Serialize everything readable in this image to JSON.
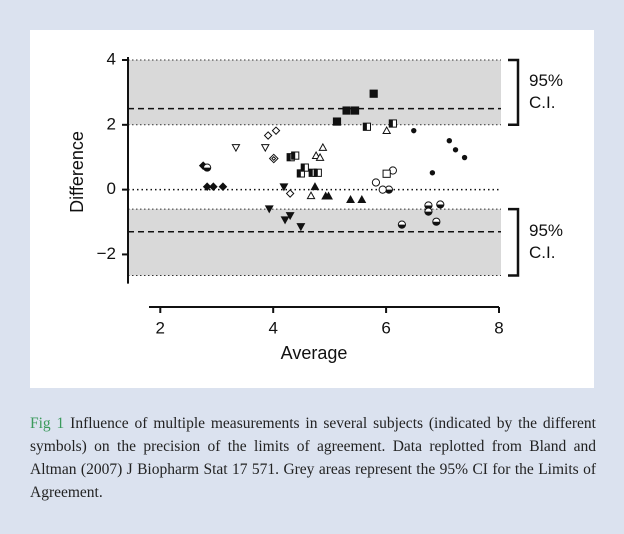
{
  "chart_data": {
    "type": "scatter",
    "x_label": "Average",
    "y_label": "Difference",
    "xlim": [
      1.8,
      8
    ],
    "xticks": [
      2,
      4,
      6,
      8
    ],
    "ylim": [
      -2.9,
      4
    ],
    "yticks": [
      4,
      2,
      0,
      {
        "value": -2,
        "label": "−2"
      }
    ],
    "reference_line": 0,
    "bands": [
      {
        "lower": 2,
        "upper": 4,
        "center": 2.5,
        "label": [
          "95%",
          "C.I."
        ]
      },
      {
        "lower": -2.65,
        "upper": -0.6,
        "center": -1.3,
        "label": [
          "95%",
          "C.I."
        ]
      }
    ],
    "band_color": "#d9d9d9",
    "series": [
      {
        "marker": "diamond-filled",
        "color": "#111111",
        "x": [
          2.76,
          2.83,
          2.94,
          3.11
        ],
        "values": [
          0.74,
          0.09,
          0.09,
          0.09
        ]
      },
      {
        "marker": "circle-half",
        "color": "#111111",
        "x": [
          2.83,
          6.28,
          6.75,
          6.75,
          6.96,
          6.89,
          6.05
        ],
        "values": [
          0.68,
          -1.08,
          -0.49,
          -0.68,
          -0.46,
          -0.99,
          0
        ]
      },
      {
        "marker": "triangle-down-open",
        "color": "#111111",
        "x": [
          3.34,
          3.86
        ],
        "values": [
          1.3,
          1.3
        ]
      },
      {
        "marker": "diamond-open",
        "color": "#111111",
        "x": [
          3.91,
          4.05,
          4.3
        ],
        "values": [
          1.67,
          1.82,
          -0.12
        ]
      },
      {
        "marker": "diamond-crossed",
        "color": "#111111",
        "x": [
          4.01
        ],
        "values": [
          0.96
        ]
      },
      {
        "marker": "triangle-down-filled",
        "color": "#111111",
        "x": [
          3.93,
          4.19,
          4.21,
          4.3,
          4.49
        ],
        "values": [
          -0.59,
          0.09,
          -0.93,
          -0.8,
          -1.14
        ]
      },
      {
        "marker": "square-half",
        "color": "#111111",
        "x": [
          4.31,
          4.39,
          4.49,
          4.56,
          4.7,
          4.79,
          5.66,
          6.12
        ],
        "values": [
          1.0,
          1.05,
          0.5,
          0.68,
          0.52,
          0.52,
          1.94,
          2.04
        ]
      },
      {
        "marker": "triangle-up-open",
        "color": "#111111",
        "x": [
          4.76,
          4.88,
          4.83,
          4.67,
          6.01
        ],
        "values": [
          1.05,
          1.3,
          0.99,
          -0.19,
          1.82
        ]
      },
      {
        "marker": "triangle-up-filled",
        "color": "#111111",
        "x": [
          4.74,
          4.93,
          4.98,
          5.37,
          5.57
        ],
        "values": [
          0.09,
          -0.2,
          -0.2,
          -0.31,
          -0.31
        ]
      },
      {
        "marker": "square-filled",
        "color": "#111111",
        "x": [
          5.13,
          5.3,
          5.45,
          5.78
        ],
        "values": [
          2.1,
          2.44,
          2.44,
          2.96
        ]
      },
      {
        "marker": "circle-open",
        "color": "#111111",
        "x": [
          5.82,
          5.94,
          6.12
        ],
        "values": [
          0.22,
          0,
          0.59
        ]
      },
      {
        "marker": "square-open",
        "color": "#111111",
        "x": [
          6.01
        ],
        "values": [
          0.49
        ]
      },
      {
        "marker": "dot",
        "color": "#111111",
        "x": [
          6.49,
          6.82,
          7.12,
          7.23,
          7.39
        ],
        "values": [
          1.82,
          0.52,
          1.51,
          1.23,
          0.99
        ]
      }
    ]
  },
  "caption": {
    "label": "Fig 1",
    "text": "Influence of multiple measurements in several subjects (indicated by the different symbols) on the precision of the limits of agreement. Data replotted from Bland and Altman (2007) J Biopharm Stat 17 571. Grey areas represent the 95% CI for the Limits of Agreement."
  }
}
